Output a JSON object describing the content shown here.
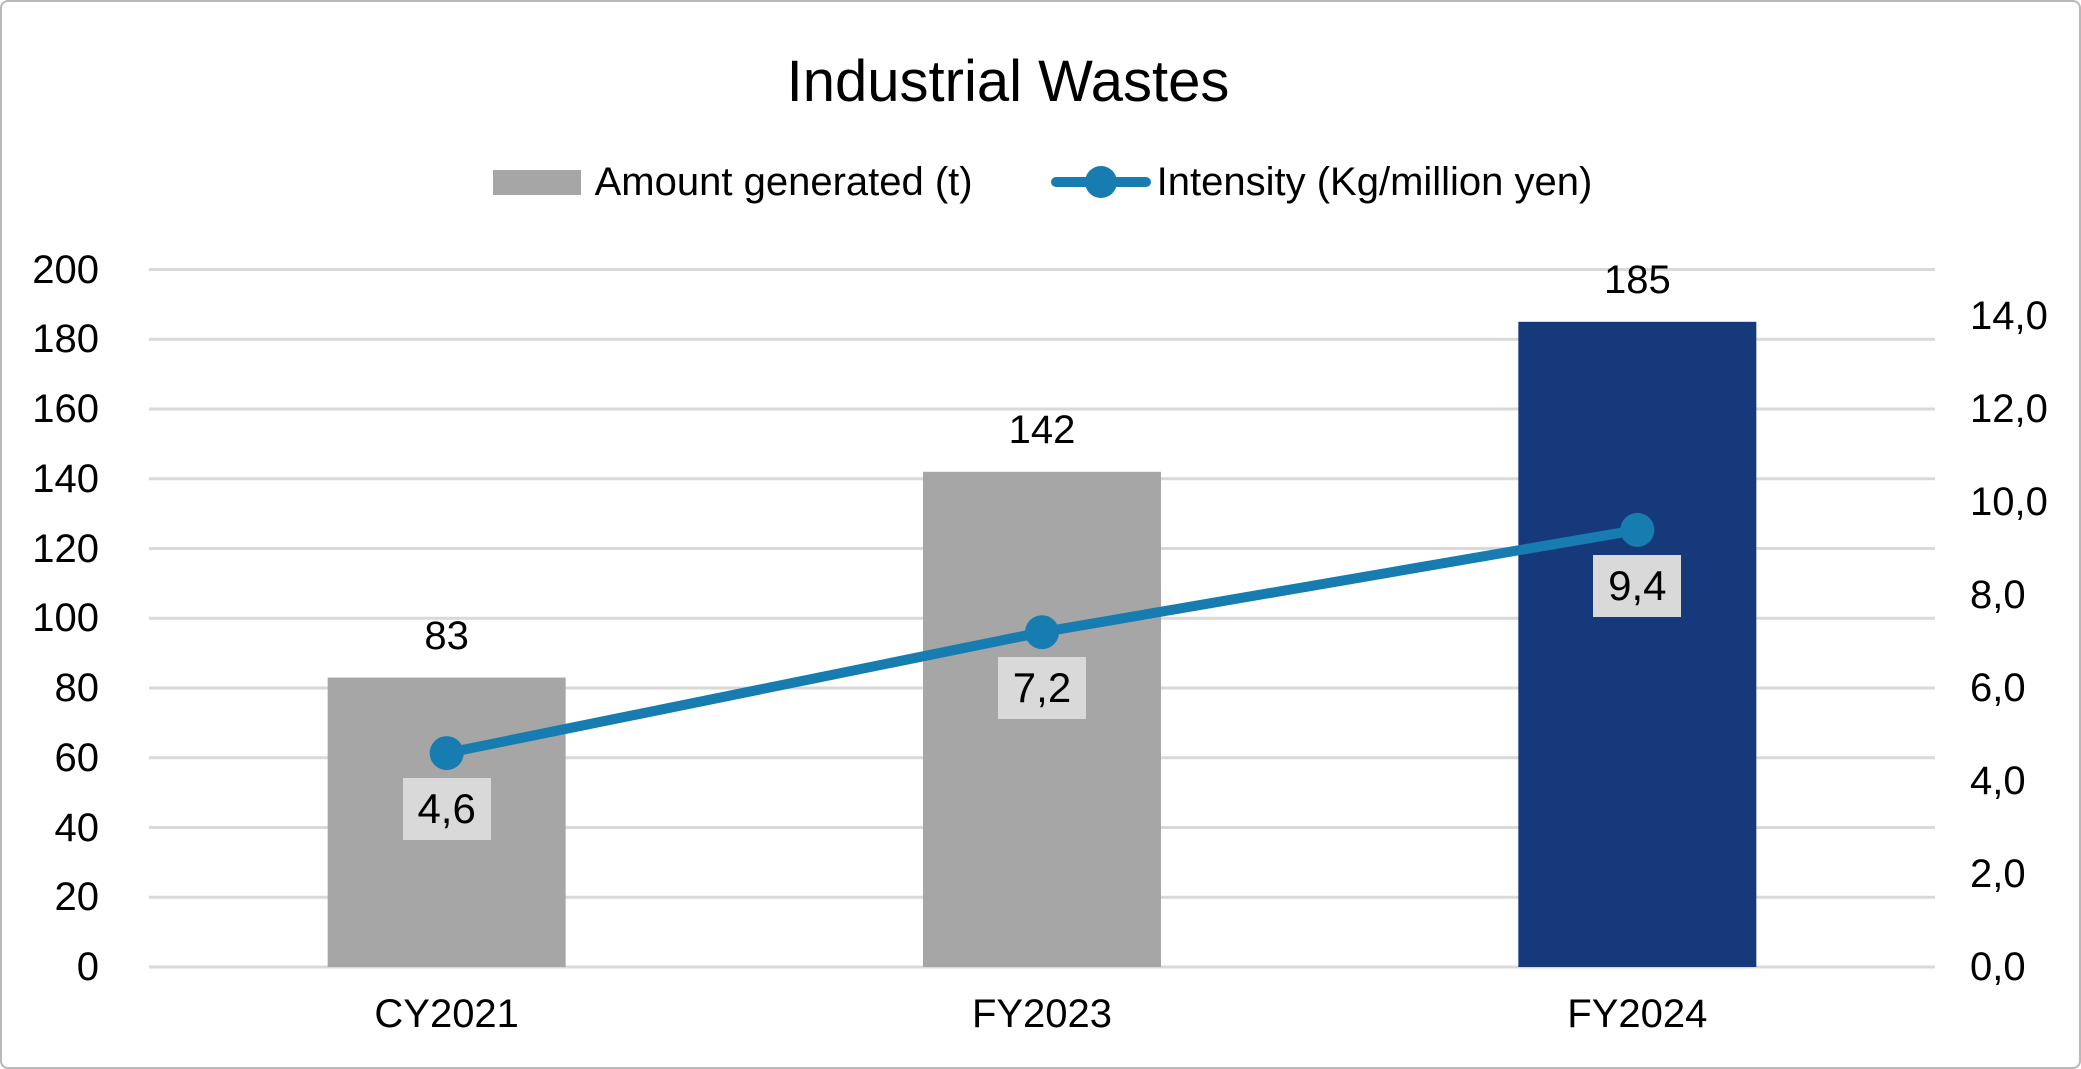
{
  "title": "Industrial Wastes",
  "legend": [
    {
      "label": "Amount generated (t)",
      "symbol": "bar-swatch",
      "color": "#a6a6a6"
    },
    {
      "label": "Intensity (Kg/million yen)",
      "symbol": "line-marker",
      "color": "#177cb0"
    }
  ],
  "colors": {
    "bar_gray": "#a6a6a6",
    "bar_navy": "#16397c",
    "line_blue": "#177cb0",
    "label_box_bg": "#d9d9d9",
    "gridline": "#d9d9d9",
    "text": "#000000",
    "frame_border": "#b8b8b8"
  },
  "chart_data": {
    "type": "bar",
    "subtype": "bar-and-line-combo",
    "title": "Industrial Wastes",
    "categories": [
      "CY2021",
      "FY2023",
      "FY2024"
    ],
    "series": [
      {
        "name": "Amount generated (t)",
        "type": "bar",
        "axis": "left",
        "values": [
          83,
          142,
          185
        ],
        "value_labels": [
          "83",
          "142",
          "185"
        ],
        "bar_colors": [
          "#a6a6a6",
          "#a6a6a6",
          "#16397c"
        ]
      },
      {
        "name": "Intensity (Kg/million yen)",
        "type": "line",
        "axis": "right",
        "values": [
          4.6,
          7.2,
          9.4
        ],
        "value_labels": [
          "4,6",
          "7,2",
          "9,4"
        ],
        "color": "#177cb0",
        "label_bg": "#d9d9d9"
      }
    ],
    "left_axis": {
      "min": 0,
      "max": 200,
      "step": 20,
      "ticks": [
        "0",
        "20",
        "40",
        "60",
        "80",
        "100",
        "120",
        "140",
        "160",
        "180",
        "200"
      ]
    },
    "right_axis": {
      "min": 0,
      "max": 15,
      "step": 2,
      "ticks": [
        "0,0",
        "2,0",
        "4,0",
        "6,0",
        "8,0",
        "10,0",
        "12,0",
        "14,0"
      ]
    },
    "grid": true,
    "legend_position": "top"
  }
}
